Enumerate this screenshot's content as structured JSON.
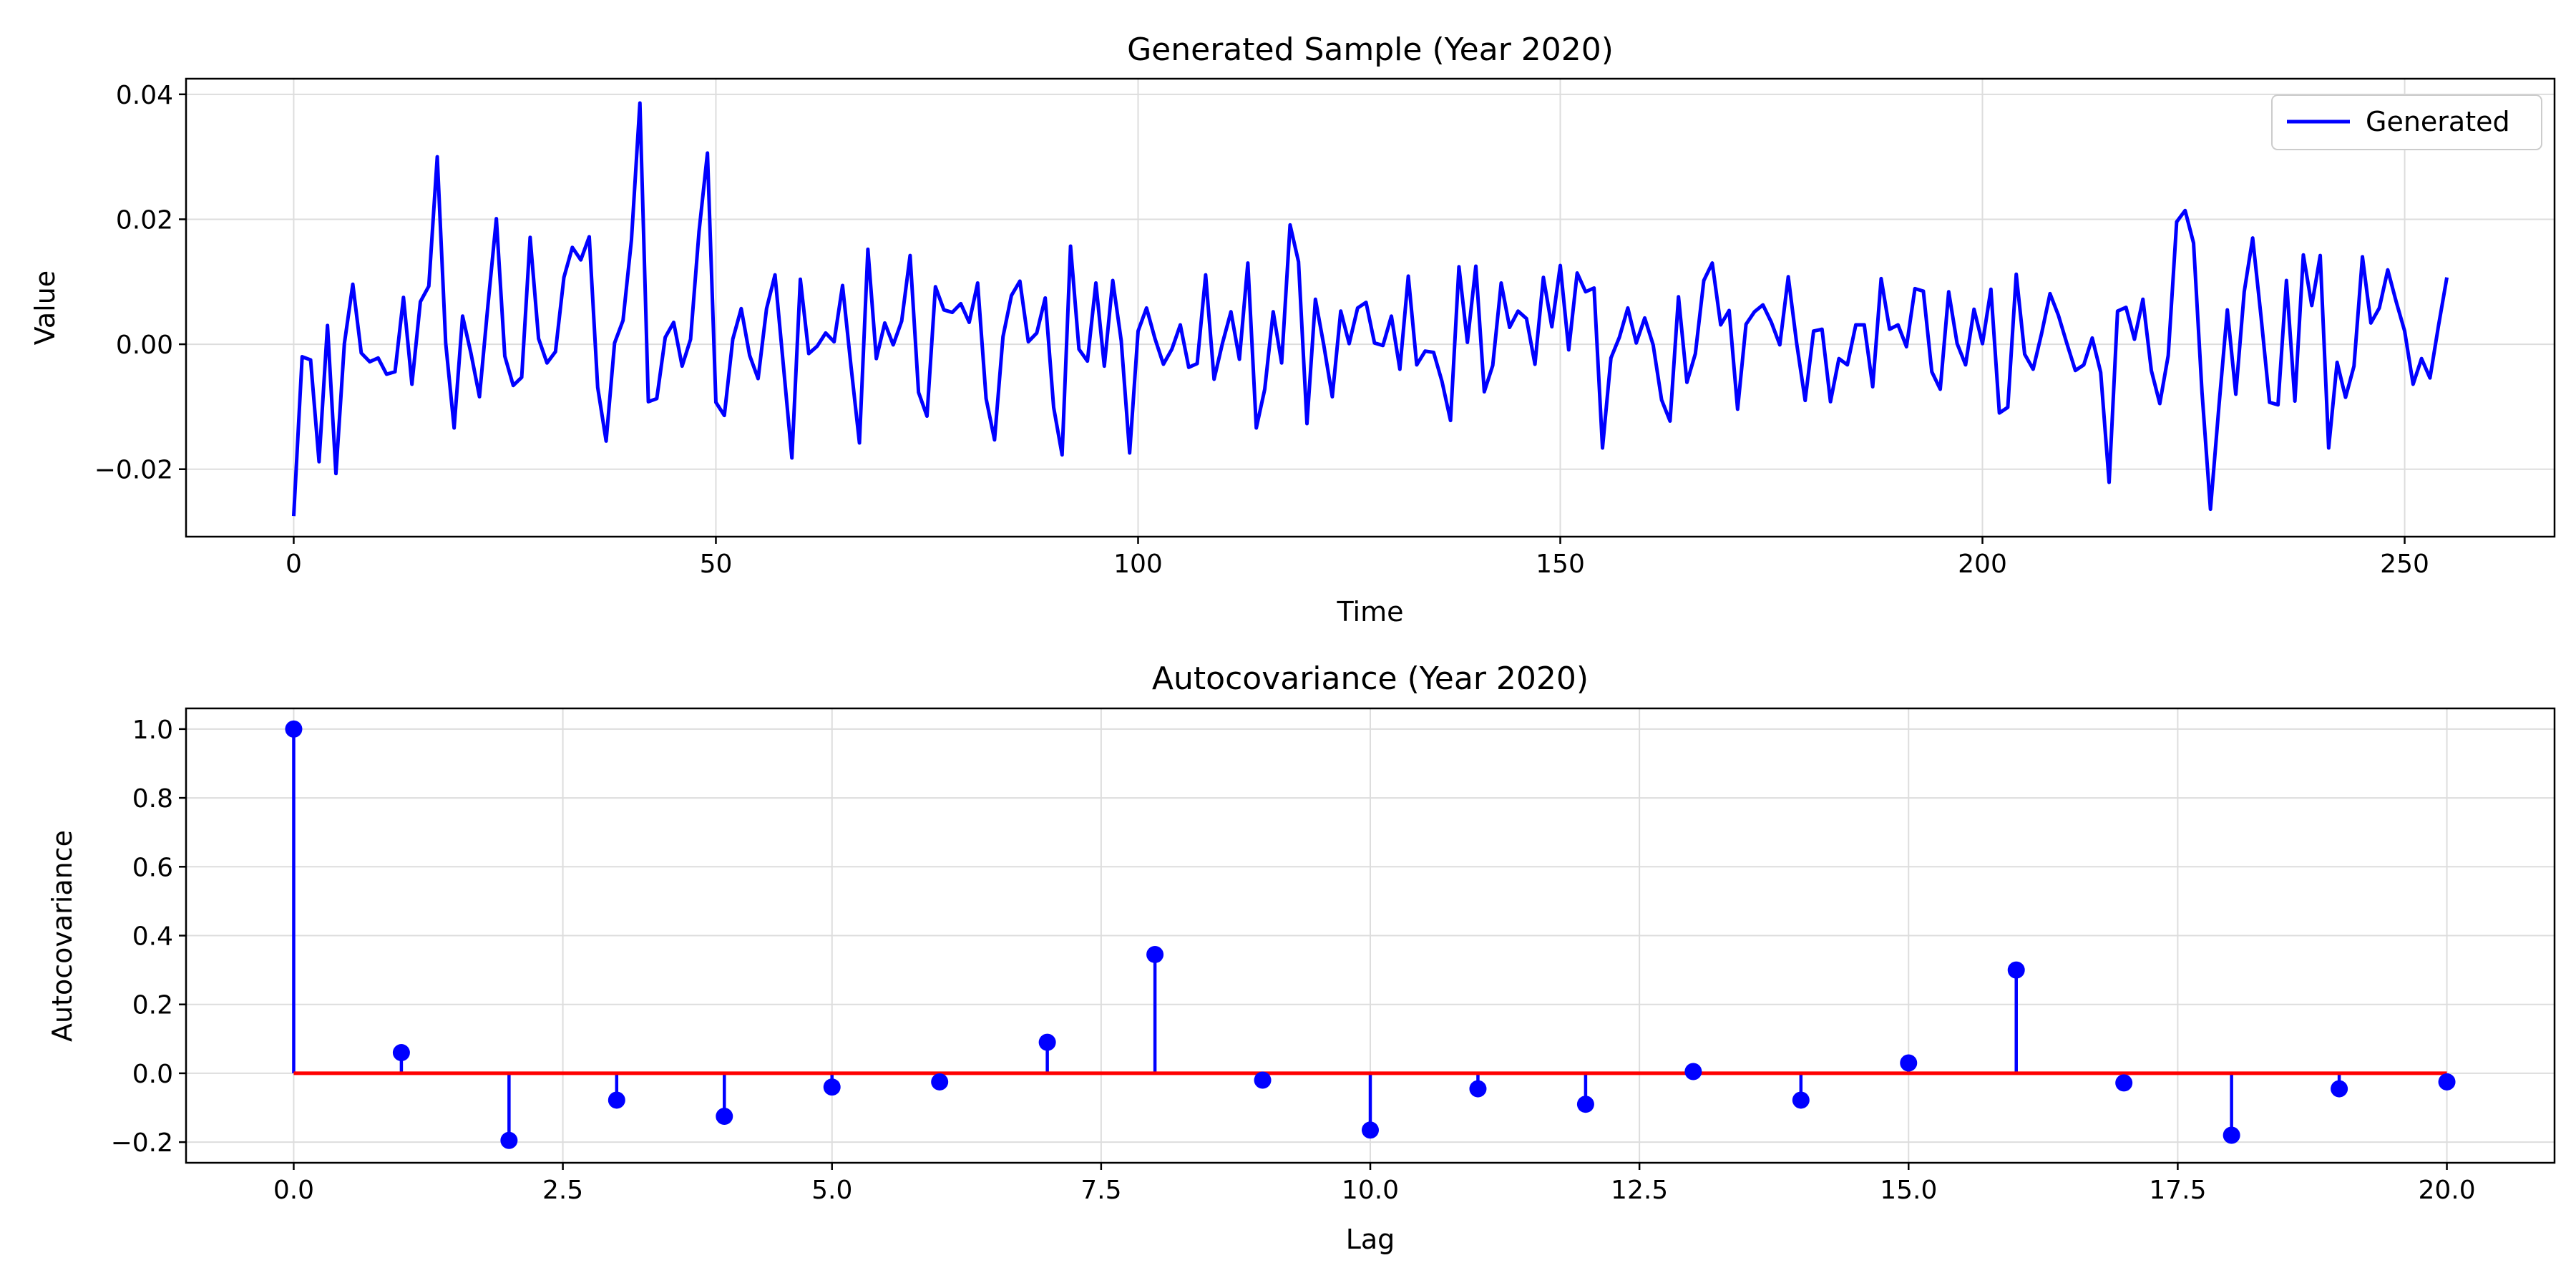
{
  "colors": {
    "series": "#0000ff",
    "baseline": "#ff0000",
    "grid": "#dddddd",
    "axes": "#000000"
  },
  "chart_data": [
    {
      "type": "line",
      "title": "Generated Sample (Year 2020)",
      "xlabel": "Time",
      "ylabel": "Value",
      "xlim": [
        -12.75,
        267.75
      ],
      "ylim": [
        -0.0308,
        0.0425
      ],
      "xticks": [
        0,
        50,
        100,
        150,
        200,
        250
      ],
      "xtick_labels": [
        "0",
        "50",
        "100",
        "150",
        "200",
        "250"
      ],
      "yticks": [
        -0.02,
        0.0,
        0.02,
        0.04
      ],
      "ytick_labels": [
        "−0.02",
        "0.00",
        "0.02",
        "0.04"
      ],
      "grid": true,
      "legend": {
        "placement": "top-right",
        "entries": [
          "Generated"
        ]
      },
      "series": [
        {
          "name": "Generated",
          "color": "#0000ff",
          "x_start": 0,
          "x_step": 1,
          "values": [
            -0.0275,
            -0.002,
            -0.0025,
            -0.0188,
            0.003,
            -0.0207,
            0.0001,
            0.0096,
            -0.0014,
            -0.0028,
            -0.0022,
            -0.0048,
            -0.0044,
            0.0075,
            -0.0064,
            0.0068,
            0.0093,
            0.03,
            0.0002,
            -0.0134,
            0.0045,
            -0.0015,
            -0.0084,
            0.0062,
            0.0201,
            -0.0019,
            -0.0066,
            -0.0053,
            0.0171,
            0.0009,
            -0.003,
            -0.0012,
            0.0107,
            0.0155,
            0.0135,
            0.0172,
            -0.0069,
            -0.0155,
            0.0002,
            0.0038,
            0.0167,
            0.0386,
            -0.0092,
            -0.0087,
            0.0011,
            0.0035,
            -0.0035,
            0.0008,
            0.018,
            0.0306,
            -0.0093,
            -0.0114,
            0.0008,
            0.0057,
            -0.0018,
            -0.0055,
            0.0057,
            0.0111,
            -0.0035,
            -0.0182,
            0.0104,
            -0.0015,
            -0.0003,
            0.0018,
            0.0004,
            0.0094,
            -0.0035,
            -0.0158,
            0.0152,
            -0.0023,
            0.0034,
            -0.0001,
            0.0037,
            0.0142,
            -0.0077,
            -0.0115,
            0.0092,
            0.0055,
            0.0051,
            0.0065,
            0.0035,
            0.0098,
            -0.0087,
            -0.0153,
            0.0012,
            0.0078,
            0.0101,
            0.0004,
            0.0018,
            0.0074,
            -0.0101,
            -0.0177,
            0.0157,
            -0.0008,
            -0.0027,
            0.0098,
            -0.0035,
            0.0102,
            0.0006,
            -0.0174,
            0.0021,
            0.0058,
            0.0009,
            -0.0032,
            -0.0008,
            0.0031,
            -0.0037,
            -0.0031,
            0.0111,
            -0.0056,
            0.0002,
            0.0052,
            -0.0024,
            0.013,
            -0.0134,
            -0.0072,
            0.0052,
            -0.003,
            0.0191,
            0.0132,
            -0.0127,
            0.0072,
            -0.0002,
            -0.0084,
            0.0053,
            0.0001,
            0.0058,
            0.0067,
            0.0002,
            -0.0002,
            0.0045,
            -0.004,
            0.0109,
            -0.0033,
            -0.0011,
            -0.0013,
            -0.006,
            -0.0122,
            0.0124,
            0.0003,
            0.0125,
            -0.0076,
            -0.0034,
            0.0098,
            0.0027,
            0.0053,
            0.0041,
            -0.0032,
            0.0107,
            0.0028,
            0.0126,
            -0.0009,
            0.0114,
            0.0084,
            0.009,
            -0.0166,
            -0.0022,
            0.0011,
            0.0058,
            0.0002,
            0.0042,
            -0.0001,
            -0.0089,
            -0.0123,
            0.0076,
            -0.0061,
            -0.0015,
            0.0102,
            0.013,
            0.0031,
            0.0054,
            -0.0104,
            0.0032,
            0.0052,
            0.0063,
            0.0035,
            -0.0001,
            0.0108,
            0.0001,
            -0.009,
            0.0021,
            0.0024,
            -0.0092,
            -0.0023,
            -0.0033,
            0.0031,
            0.0031,
            -0.0068,
            0.0105,
            0.0024,
            0.0031,
            -0.0004,
            0.0089,
            0.0085,
            -0.0044,
            -0.0072,
            0.0084,
            0.0001,
            -0.0033,
            0.0056,
            0.0001,
            0.0088,
            -0.011,
            -0.0101,
            0.0112,
            -0.0016,
            -0.004,
            0.0017,
            0.0081,
            0.0046,
            0.0001,
            -0.0042,
            -0.0033,
            0.001,
            -0.0045,
            -0.0221,
            0.0053,
            0.0059,
            0.0008,
            0.0072,
            -0.0042,
            -0.0095,
            -0.0018,
            0.0196,
            0.0214,
            0.0162,
            -0.0077,
            -0.0264,
            -0.01,
            0.0055,
            -0.008,
            0.0084,
            0.017,
            0.0043,
            -0.0093,
            -0.0097,
            0.0102,
            -0.0091,
            0.0143,
            0.0062,
            0.0142,
            -0.0166,
            -0.0029,
            -0.0085,
            -0.0035,
            0.014,
            0.0034,
            0.0058,
            0.0119,
            0.0068,
            0.0021,
            -0.0064,
            -0.0023,
            -0.0054,
            0.0029,
            0.0107
          ]
        }
      ]
    },
    {
      "type": "stem",
      "title": "Autocovariance (Year 2020)",
      "xlabel": "Lag",
      "ylabel": "Autocovariance",
      "xlim": [
        -1.0,
        21.0
      ],
      "ylim": [
        -0.26,
        1.06
      ],
      "xticks": [
        0.0,
        2.5,
        5.0,
        7.5,
        10.0,
        12.5,
        15.0,
        17.5,
        20.0
      ],
      "xtick_labels": [
        "0.0",
        "2.5",
        "5.0",
        "7.5",
        "10.0",
        "12.5",
        "15.0",
        "17.5",
        "20.0"
      ],
      "yticks": [
        -0.2,
        0.0,
        0.2,
        0.4,
        0.6,
        0.8,
        1.0
      ],
      "ytick_labels": [
        "−0.2",
        "0.0",
        "0.2",
        "0.4",
        "0.6",
        "0.8",
        "1.0"
      ],
      "grid": true,
      "baseline": 0.0,
      "x": [
        0,
        1,
        2,
        3,
        4,
        5,
        6,
        7,
        8,
        9,
        10,
        11,
        12,
        13,
        14,
        15,
        16,
        17,
        18,
        19,
        20
      ],
      "values": [
        1.0,
        0.06,
        -0.195,
        -0.078,
        -0.125,
        -0.04,
        -0.025,
        0.09,
        0.345,
        -0.02,
        -0.165,
        -0.045,
        -0.09,
        0.005,
        -0.078,
        0.03,
        0.3,
        -0.028,
        -0.18,
        -0.045,
        -0.025
      ]
    }
  ]
}
